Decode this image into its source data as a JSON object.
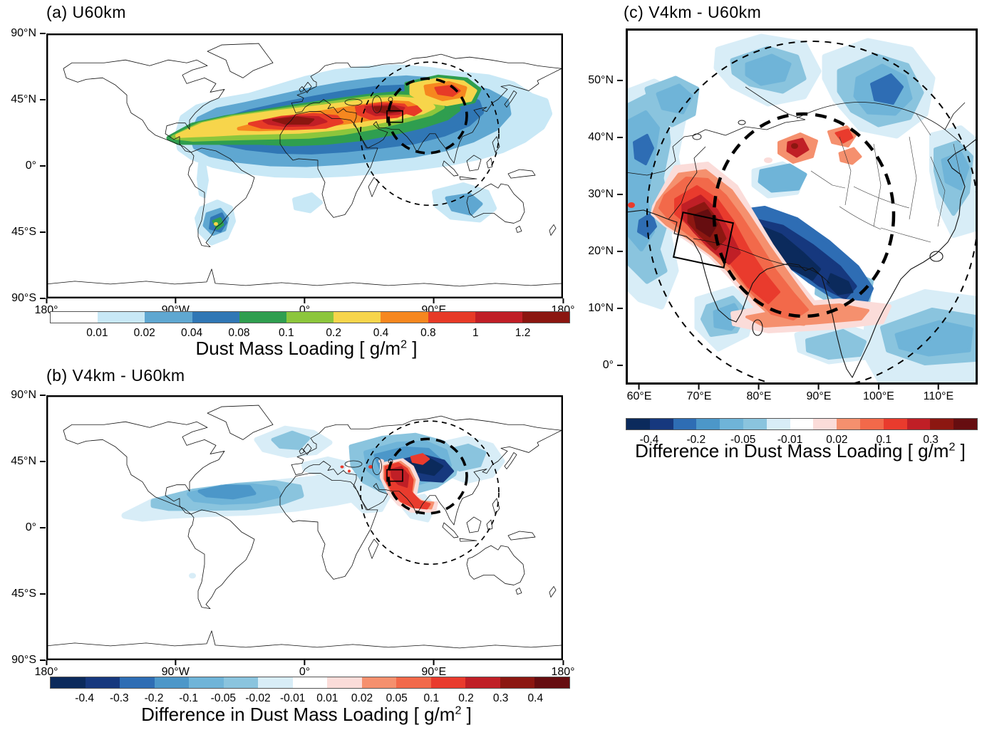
{
  "panels": {
    "a": {
      "title": "(a) U60km",
      "x_ticks": [
        "180°",
        "90°W",
        "0°",
        "90°E",
        "180°"
      ],
      "y_ticks": [
        "90°N",
        "45°N",
        "0°",
        "45°S",
        "90°S"
      ],
      "colorbar": {
        "colors": [
          "#FFFFFF",
          "#C8E8F6",
          "#5FA7D1",
          "#3077B5",
          "#2F9E4F",
          "#8CC63C",
          "#F7D54B",
          "#F6871F",
          "#E73A27",
          "#C01E26",
          "#8B1610"
        ],
        "tick_labels": [
          "0.01",
          "0.02",
          "0.04",
          "0.08",
          "0.1",
          "0.2",
          "0.4",
          "0.8",
          "1",
          "1.2"
        ],
        "title_prefix": "Dust Mass Loading [ g/m",
        "title_sup": "2",
        "title_suffix": " ]"
      }
    },
    "b": {
      "title": "(b) V4km - U60km",
      "x_ticks": [
        "180°",
        "90°W",
        "0°",
        "90°E",
        "180°"
      ],
      "y_ticks": [
        "90°N",
        "45°N",
        "0°",
        "45°S",
        "90°S"
      ],
      "colorbar": {
        "colors": [
          "#0B2A5C",
          "#16387E",
          "#2E6DB4",
          "#4C97C9",
          "#6FB4D8",
          "#8AC4DE",
          "#D8EDF7",
          "#FFFFFF",
          "#FBDCD9",
          "#F5906E",
          "#F2694A",
          "#E93B2D",
          "#C01F26",
          "#8C1711",
          "#660D10"
        ],
        "tick_labels": [
          "-0.4",
          "-0.3",
          "-0.2",
          "-0.1",
          "-0.05",
          "-0.02",
          "-0.01",
          "0.01",
          "0.02",
          "0.05",
          "0.1",
          "0.2",
          "0.3",
          "0.4"
        ],
        "title_prefix": "Difference in Dust Mass Loading [ g/m",
        "title_sup": "2",
        "title_suffix": " ]"
      }
    },
    "c": {
      "title": "(c) V4km - U60km",
      "x_ticks": [
        "60°E",
        "70°E",
        "80°E",
        "90°E",
        "100°E",
        "110°E"
      ],
      "y_ticks": [
        "50°N",
        "40°N",
        "30°N",
        "20°N",
        "10°N",
        "0°"
      ],
      "colorbar": {
        "colors": [
          "#0B2A5C",
          "#16387E",
          "#2E6DB4",
          "#4C97C9",
          "#6FB4D8",
          "#8AC4DE",
          "#D8EDF7",
          "#FFFFFF",
          "#FBDCD9",
          "#F5906E",
          "#F2694A",
          "#E93B2D",
          "#C01F26",
          "#8C1711",
          "#660D10"
        ],
        "tick_labels": [
          "-0.4",
          "-0.2",
          "-0.05",
          "-0.01",
          "0.02",
          "0.1",
          "0.3"
        ],
        "tick_boundaries": [
          1,
          3,
          5,
          7,
          9,
          11,
          13
        ],
        "title_prefix": "Difference in Dust Mass Loading [ g/m",
        "title_sup": "2",
        "title_suffix": " ]"
      }
    }
  },
  "chart_data": [
    {
      "panel": "a",
      "type": "heatmap",
      "title": "(a) U60km",
      "colorbar_label": "Dust Mass Loading [ g/m2 ]",
      "projection": "global equirectangular map, filled contours",
      "map_extent": {
        "lon": [
          -180,
          180
        ],
        "lat": [
          -90,
          90
        ]
      },
      "x_tick_labels": [
        "180°",
        "90°W",
        "0°",
        "90°E",
        "180°"
      ],
      "y_tick_labels": [
        "90°N",
        "45°N",
        "0°",
        "45°S",
        "90°S"
      ],
      "contour_levels_g_per_m2": [
        0.01,
        0.02,
        0.04,
        0.08,
        0.1,
        0.2,
        0.4,
        0.8,
        1,
        1.2
      ],
      "palette": [
        "#FFFFFF",
        "#C8E8F6",
        "#5FA7D1",
        "#3077B5",
        "#2F9E4F",
        "#8CC63C",
        "#F7D54B",
        "#F6871F",
        "#E73A27",
        "#C01E26",
        "#8B1610"
      ],
      "features": [
        "continuous dust belt ~0-45N from the Caribbean across the North Atlantic, Sahara, Middle East and South Asia to East Asia and the NW Pacific",
        "maxima above 1.2 g/m2 over the central/western Sahara and over the Arabian Peninsula / Persian Gulf region",
        "secondary high-loading (0.4-1 g/m2) over the Thar desert and the Taklamakan/Gobi deserts",
        "weak plumes (0.01-0.2 g/m2) over Patagonia, southern Africa and Australia",
        "bold dashed ellipse and larger thin dashed circle drawn over Central/South Asia",
        "small solid rectangle over the Iran/Pakistan region"
      ]
    },
    {
      "panel": "b",
      "type": "heatmap",
      "title": "(b) V4km - U60km",
      "colorbar_label": "Difference in Dust Mass Loading [ g/m2 ]",
      "projection": "global equirectangular map, filled contours of model difference",
      "map_extent": {
        "lon": [
          -180,
          180
        ],
        "lat": [
          -90,
          90
        ]
      },
      "x_tick_labels": [
        "180°",
        "90°W",
        "0°",
        "90°E",
        "180°"
      ],
      "y_tick_labels": [
        "90°N",
        "45°N",
        "0°",
        "45°S",
        "90°S"
      ],
      "contour_levels_g_per_m2": [
        -0.4,
        -0.3,
        -0.2,
        -0.1,
        -0.05,
        -0.02,
        -0.01,
        0.01,
        0.02,
        0.05,
        0.1,
        0.2,
        0.3,
        0.4
      ],
      "palette": [
        "#0B2A5C",
        "#16387E",
        "#2E6DB4",
        "#4C97C9",
        "#6FB4D8",
        "#8AC4DE",
        "#D8EDF7",
        "#FFFFFF",
        "#FBDCD9",
        "#F5906E",
        "#F2694A",
        "#E93B2D",
        "#C01F26",
        "#8C1711",
        "#660D10"
      ],
      "features": [
        "negative (blue) band ~0-35N across the subtropical Atlantic, North Africa, Middle East and South/East Asia",
        "strong negative core (< -0.4 g/m2) south of the Himalayas / Tibetan Plateau",
        "positive (red) crescent over Pakistan / NW India curving along the Himalayan foothills",
        "small positive patch near the Taklamakan (Tarim basin)",
        "bold dashed ellipse and thin dashed circle over Central/South Asia with small solid rectangle"
      ]
    },
    {
      "panel": "c",
      "type": "heatmap",
      "title": "(c) V4km - U60km",
      "colorbar_label": "Difference in Dust Mass Loading [ g/m2 ]",
      "projection": "regional equirectangular map over South/East Asia, filled contours of model difference",
      "map_extent": {
        "lon": [
          58,
          116.5
        ],
        "lat": [
          -3,
          58
        ]
      },
      "x_tick_labels": [
        "60°E",
        "70°E",
        "80°E",
        "90°E",
        "100°E",
        "110°E"
      ],
      "y_tick_labels": [
        "50°N",
        "40°N",
        "30°N",
        "20°N",
        "10°N",
        "0°"
      ],
      "contour_levels_g_per_m2": [
        -0.4,
        -0.3,
        -0.2,
        -0.1,
        -0.05,
        -0.02,
        -0.01,
        0.01,
        0.02,
        0.05,
        0.1,
        0.2,
        0.3,
        0.4
      ],
      "labeled_levels": [
        -0.4,
        -0.2,
        -0.05,
        -0.01,
        0.02,
        0.1,
        0.3
      ],
      "palette": [
        "#0B2A5C",
        "#16387E",
        "#2E6DB4",
        "#4C97C9",
        "#6FB4D8",
        "#8AC4DE",
        "#D8EDF7",
        "#FFFFFF",
        "#FBDCD9",
        "#F5906E",
        "#F2694A",
        "#E93B2D",
        "#C01F26",
        "#8C1711",
        "#660D10"
      ],
      "features": [
        "large positive (red) anomaly > 0.3 g/m2 over Pakistan / NW India inside a small solid rotated rectangle, extending SE along the Himalayan foothills",
        "strong negative (dark blue, < -0.4 g/m2) band along the southern edge of the Tibetan Plateau",
        "scattered positive patches over the Taklamakan / Tarim basin",
        "weak positive (pink/salmon) band near 8-12N over southern India and the Bay of Bengal",
        "widespread weak negative (light blue) areas over Central Asia, eastern China and the surrounding seas",
        "bold inner dashed circle and larger thin dashed circle centred near the Himalayas"
      ]
    }
  ]
}
